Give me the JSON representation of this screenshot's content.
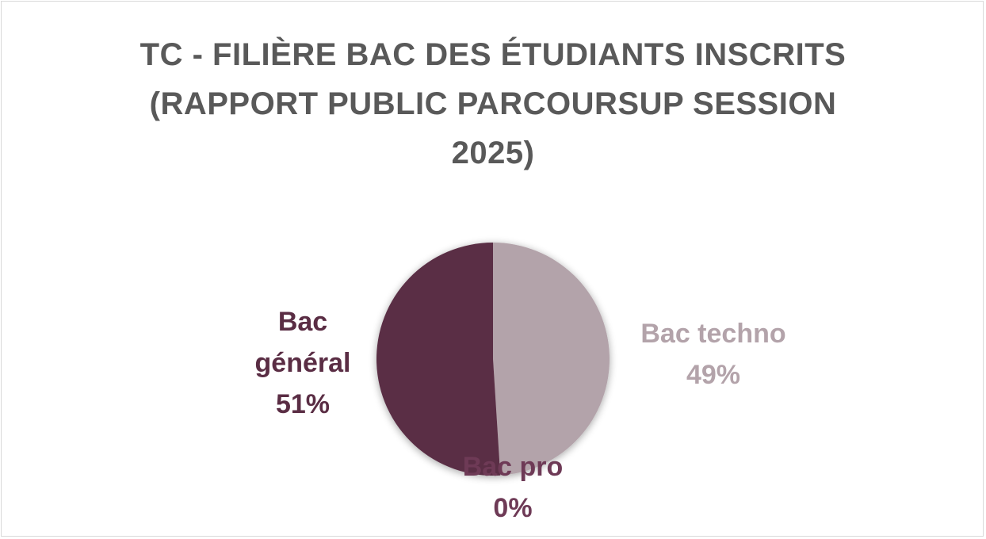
{
  "chart_data": {
    "type": "pie",
    "title_lines": [
      "TC - FILIÈRE BAC DES ÉTUDIANTS INSCRITS",
      "(RAPPORT PUBLIC PARCOURSUP SESSION",
      "2025)"
    ],
    "slices": [
      {
        "label": "Bac techno",
        "value": 49,
        "value_label": "49%",
        "color": "#b3a3aa",
        "label_color": "#b3a3aa"
      },
      {
        "label": "Bac pro",
        "value": 0,
        "value_label": "0%",
        "color": "#7a3e5c",
        "label_color": "#6e3a56"
      },
      {
        "label": "Bac général",
        "value": 51,
        "value_label": "51%",
        "color": "#5a2d44",
        "label_color": "#5a2d44"
      }
    ],
    "start_angle": "top",
    "direction": "clockwise",
    "legend": "none"
  }
}
